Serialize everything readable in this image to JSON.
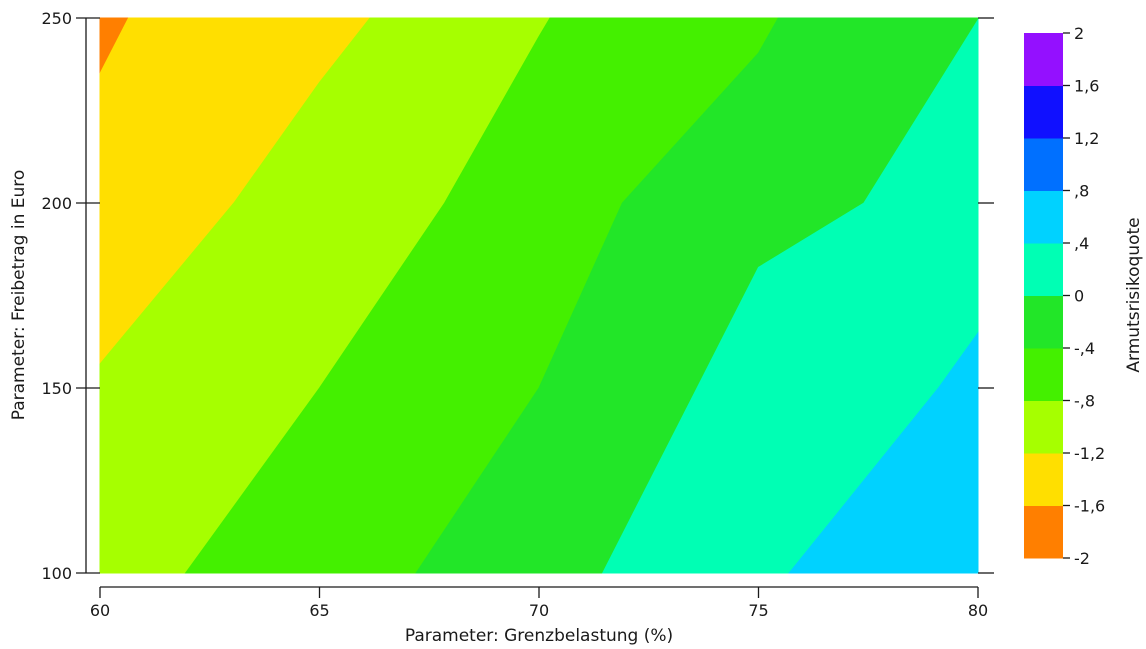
{
  "chart_data": {
    "type": "contour",
    "xlabel": "Parameter: Grenzbelastung (%)",
    "ylabel": "Parameter: Freibetrag in Euro",
    "xlim": [
      60,
      80
    ],
    "ylim": [
      100,
      250
    ],
    "x_ticks": [
      60,
      65,
      70,
      75,
      80
    ],
    "x_tick_labels": [
      "60",
      "65",
      "70",
      "75",
      "80"
    ],
    "y_ticks": [
      100,
      150,
      200,
      250
    ],
    "y_tick_labels": [
      "100",
      "150",
      "200",
      "250"
    ],
    "colorbar": {
      "label": "Armutsrisikoquote",
      "levels": [
        -2,
        -1.6,
        -1.2,
        -0.8,
        -0.4,
        0,
        0.4,
        0.8,
        1.2,
        1.6,
        2
      ],
      "tick_labels": [
        "-2",
        "-1,6",
        "-1,2",
        "-,8",
        "-,4",
        "0",
        ",4",
        ",8",
        "1,2",
        "1,6",
        "2"
      ],
      "colors": [
        "#ff7f00",
        "#ffdf00",
        "#a6ff00",
        "#44f000",
        "#22e628",
        "#00ffb4",
        "#00d2ff",
        "#0070ff",
        "#1010ff",
        "#9410ff"
      ]
    },
    "regions": [
      {
        "level_range": [
          -2.0,
          -1.6
        ],
        "points": [
          [
            60,
            235
          ],
          [
            60.65,
            250
          ],
          [
            60,
            250
          ]
        ]
      },
      {
        "level_range": [
          -1.6,
          -1.2
        ],
        "points": [
          [
            60,
            156.5
          ],
          [
            63.05,
            200
          ],
          [
            65,
            232.6
          ],
          [
            66.15,
            250
          ],
          [
            60.65,
            250
          ],
          [
            60,
            235
          ]
        ]
      },
      {
        "level_range": [
          -1.2,
          -0.8
        ],
        "points": [
          [
            60,
            100
          ],
          [
            61.95,
            100
          ],
          [
            65,
            150
          ],
          [
            67.85,
            200
          ],
          [
            70,
            245
          ],
          [
            70.25,
            250
          ],
          [
            66.15,
            250
          ],
          [
            65,
            232.6
          ],
          [
            63.05,
            200
          ],
          [
            60,
            156.5
          ]
        ]
      },
      {
        "level_range": [
          -0.8,
          -0.4
        ],
        "points": [
          [
            61.95,
            100
          ],
          [
            67.2,
            100
          ],
          [
            70,
            150
          ],
          [
            71.9,
            200
          ],
          [
            75,
            240.5
          ],
          [
            75.45,
            250
          ],
          [
            70.25,
            250
          ],
          [
            70,
            245
          ],
          [
            67.85,
            200
          ],
          [
            65,
            150
          ]
        ]
      },
      {
        "level_range": [
          -0.4,
          0.0
        ],
        "points": [
          [
            67.2,
            100
          ],
          [
            71.45,
            100
          ],
          [
            75,
            182.6
          ],
          [
            77.4,
            200
          ],
          [
            80,
            249.5
          ],
          [
            80,
            250
          ],
          [
            75.45,
            250
          ],
          [
            75,
            240.5
          ],
          [
            71.9,
            200
          ],
          [
            70,
            150
          ]
        ]
      },
      {
        "level_range": [
          0.0,
          0.4
        ],
        "points": [
          [
            71.45,
            100
          ],
          [
            75.7,
            100
          ],
          [
            79.1,
            150
          ],
          [
            80,
            164.9
          ],
          [
            80,
            249.5
          ],
          [
            77.4,
            200
          ],
          [
            75,
            182.6
          ]
        ]
      },
      {
        "level_range": [
          0.4,
          0.8
        ],
        "points": [
          [
            75.7,
            100
          ],
          [
            80,
            100
          ],
          [
            80,
            164.9
          ],
          [
            79.1,
            150
          ]
        ]
      }
    ]
  }
}
